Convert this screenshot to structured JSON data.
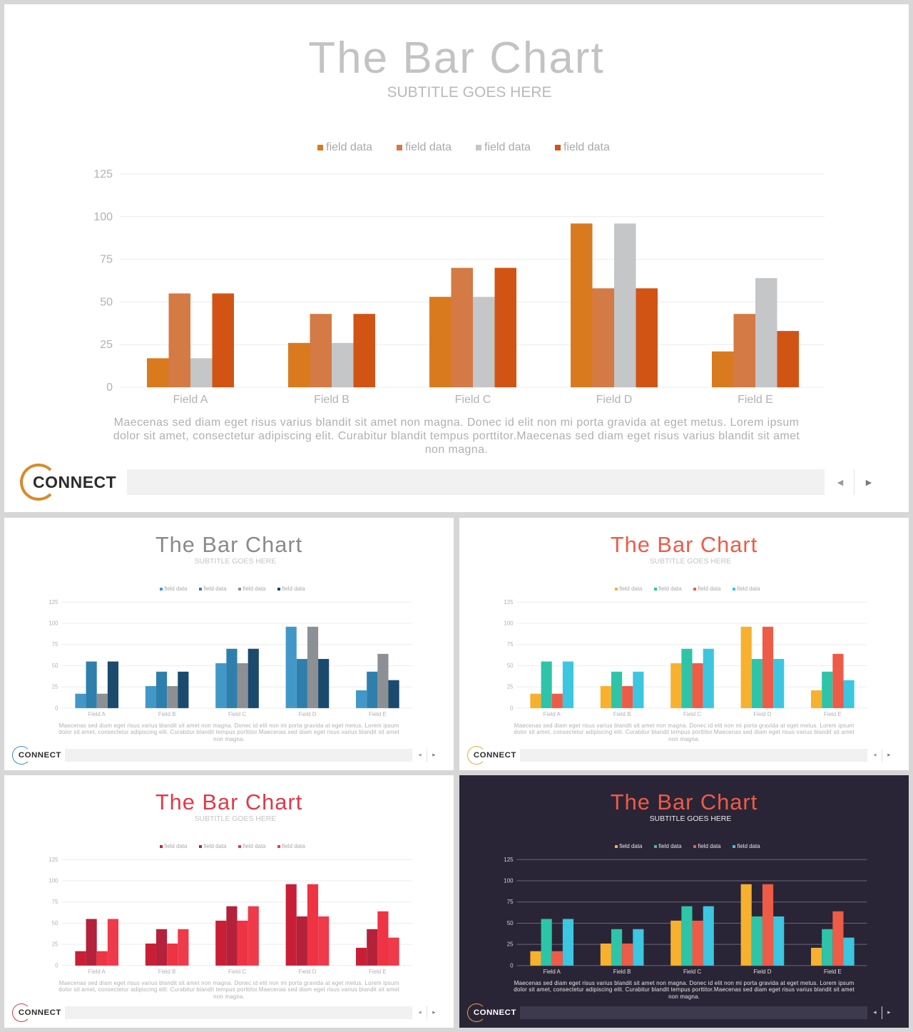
{
  "chart_data": [
    {
      "type": "bar",
      "title": "The Bar Chart",
      "subtitle": "SUBTITLE GOES HERE",
      "categories": [
        "Field A",
        "Field B",
        "Field C",
        "Field D",
        "Field E"
      ],
      "series": [
        {
          "name": "field data",
          "color": "#d97a1f",
          "values": [
            17,
            26,
            53,
            96,
            21
          ]
        },
        {
          "name": "field data",
          "color": "#d47a45",
          "values": [
            55,
            43,
            70,
            58,
            43
          ]
        },
        {
          "name": "field data",
          "color": "#c4c6c8",
          "values": [
            17,
            26,
            53,
            96,
            64
          ]
        },
        {
          "name": "field data",
          "color": "#d25414",
          "values": [
            55,
            43,
            70,
            58,
            33
          ]
        }
      ],
      "y_ticks": [
        "0",
        "25",
        "50",
        "75",
        "100",
        "125"
      ],
      "ylim": [
        0,
        125
      ],
      "grid": true,
      "legend_position": "top-center"
    },
    {
      "type": "bar",
      "title": "The Bar Chart",
      "subtitle": "SUBTITLE GOES HERE",
      "categories": [
        "Field A",
        "Field B",
        "Field C",
        "Field D",
        "Field E"
      ],
      "series": [
        {
          "name": "field data",
          "color": "#4198c8",
          "values": [
            17,
            26,
            53,
            96,
            21
          ]
        },
        {
          "name": "field data",
          "color": "#2f7fac",
          "values": [
            55,
            43,
            70,
            58,
            43
          ]
        },
        {
          "name": "field data",
          "color": "#8c8f93",
          "values": [
            17,
            26,
            53,
            96,
            64
          ]
        },
        {
          "name": "field data",
          "color": "#1a4a6e",
          "values": [
            55,
            43,
            70,
            58,
            33
          ]
        }
      ],
      "y_ticks": [
        "0",
        "25",
        "50",
        "75",
        "100",
        "125"
      ],
      "ylim": [
        0,
        125
      ],
      "grid": true,
      "legend_position": "top-center"
    },
    {
      "type": "bar",
      "title": "The Bar Chart",
      "subtitle": "SUBTITLE GOES HERE",
      "categories": [
        "Field A",
        "Field B",
        "Field C",
        "Field D",
        "Field E"
      ],
      "series": [
        {
          "name": "field data",
          "color": "#f7b12f",
          "values": [
            17,
            26,
            53,
            96,
            21
          ]
        },
        {
          "name": "field data",
          "color": "#2ec4a8",
          "values": [
            55,
            43,
            70,
            58,
            43
          ]
        },
        {
          "name": "field data",
          "color": "#ee5b47",
          "values": [
            17,
            26,
            53,
            96,
            64
          ]
        },
        {
          "name": "field data",
          "color": "#3cc6e0",
          "values": [
            55,
            43,
            70,
            58,
            33
          ]
        }
      ],
      "y_ticks": [
        "0",
        "25",
        "50",
        "75",
        "100",
        "125"
      ],
      "ylim": [
        0,
        125
      ],
      "grid": true,
      "legend_position": "top-center"
    },
    {
      "type": "bar",
      "title": "The Bar Chart",
      "subtitle": "SUBTITLE GOES HERE",
      "categories": [
        "Field A",
        "Field B",
        "Field C",
        "Field D",
        "Field E"
      ],
      "series": [
        {
          "name": "field data",
          "color": "#c91f36",
          "values": [
            17,
            26,
            53,
            96,
            21
          ]
        },
        {
          "name": "field data",
          "color": "#b3223a",
          "values": [
            55,
            43,
            70,
            58,
            43
          ]
        },
        {
          "name": "field data",
          "color": "#ee3344",
          "values": [
            17,
            26,
            53,
            96,
            64
          ]
        },
        {
          "name": "field data",
          "color": "#ee3a4a",
          "values": [
            55,
            43,
            70,
            58,
            33
          ]
        }
      ],
      "y_ticks": [
        "0",
        "25",
        "50",
        "75",
        "100",
        "125"
      ],
      "ylim": [
        0,
        125
      ],
      "grid": true,
      "legend_position": "top-center"
    },
    {
      "type": "bar",
      "title": "The Bar Chart",
      "subtitle": "SUBTITLE GOES HERE",
      "categories": [
        "Field A",
        "Field B",
        "Field C",
        "Field D",
        "Field E"
      ],
      "series": [
        {
          "name": "field data",
          "color": "#f7b12f",
          "values": [
            17,
            26,
            53,
            96,
            21
          ]
        },
        {
          "name": "field data",
          "color": "#2ec4a8",
          "values": [
            55,
            43,
            70,
            58,
            43
          ]
        },
        {
          "name": "field data",
          "color": "#ee5b47",
          "values": [
            17,
            26,
            53,
            96,
            64
          ]
        },
        {
          "name": "field data",
          "color": "#3cc6e0",
          "values": [
            55,
            43,
            70,
            58,
            33
          ]
        }
      ],
      "y_ticks": [
        "0",
        "25",
        "50",
        "75",
        "100",
        "125"
      ],
      "ylim": [
        0,
        125
      ],
      "grid": true,
      "legend_position": "top-center"
    }
  ],
  "slides": [
    {
      "theme": "light",
      "title_color": "#c3c3c3",
      "description": "Maecenas sed diam eget risus varius blandit sit amet non magna. Donec id elit non mi porta gravida at eget metus. Lorem ipsum dolor sit amet, consectetur adipiscing elit. Curabitur blandit tempus porttitor.Maecenas sed diam eget risus varius blandit sit amet non magna.",
      "logo_text": "CONNECT",
      "logo_ring_color": "#d98a2b",
      "nav_prev_icon": "◀",
      "nav_next_icon": "▶"
    },
    {
      "theme": "light",
      "title_color": "#8a8a8a",
      "description": "Maecenas sed diam eget risus varius blandit sit amet non magna. Donec id elit non mi porta gravida at eget metus. Lorem ipsum dolor sit amet, consectetur adipiscing elit. Curabitur blandit tempus porttitor.Maecenas sed diam eget risus varius blandit sit amet non magna.",
      "logo_text": "CONNECT",
      "logo_ring_color": "#3a8cc4",
      "nav_prev_icon": "◀",
      "nav_next_icon": "▶"
    },
    {
      "theme": "light",
      "title_color": "#ee5b47",
      "description": "Maecenas sed diam eget risus varius blandit sit amet non magna. Donec id elit non mi porta gravida at eget metus. Lorem ipsum dolor sit amet, consectetur adipiscing elit. Curabitur blandit tempus porttitor.Maecenas sed diam eget risus varius blandit sit amet non magna.",
      "logo_text": "CONNECT",
      "logo_ring_color": "#e8a640",
      "nav_prev_icon": "◀",
      "nav_next_icon": "▶"
    },
    {
      "theme": "light",
      "title_color": "#e03a48",
      "description": "Maecenas sed diam eget risus varius blandit sit amet non magna. Donec id elit non mi porta gravida at eget metus. Lorem ipsum dolor sit amet, consectetur adipiscing elit. Curabitur blandit tempus porttitor.Maecenas sed diam eget risus varius blandit sit amet non magna.",
      "logo_text": "CONNECT",
      "logo_ring_color": "#d33a48",
      "nav_prev_icon": "◀",
      "nav_next_icon": "▶"
    },
    {
      "theme": "dark",
      "title_color": "#ee5b47",
      "description": "Maecenas sed diam eget risus varius blandit sit amet non magna. Donec id elit non mi porta gravida at eget metus. Lorem ipsum dolor sit amet, consectetur adipiscing elit. Curabitur blandit tempus porttitor.Maecenas sed diam eget risus varius blandit sit amet non magna.",
      "logo_text": "CONNECT",
      "logo_ring_color": "#e8a640",
      "nav_prev_icon": "◀",
      "nav_next_icon": "▶"
    }
  ]
}
